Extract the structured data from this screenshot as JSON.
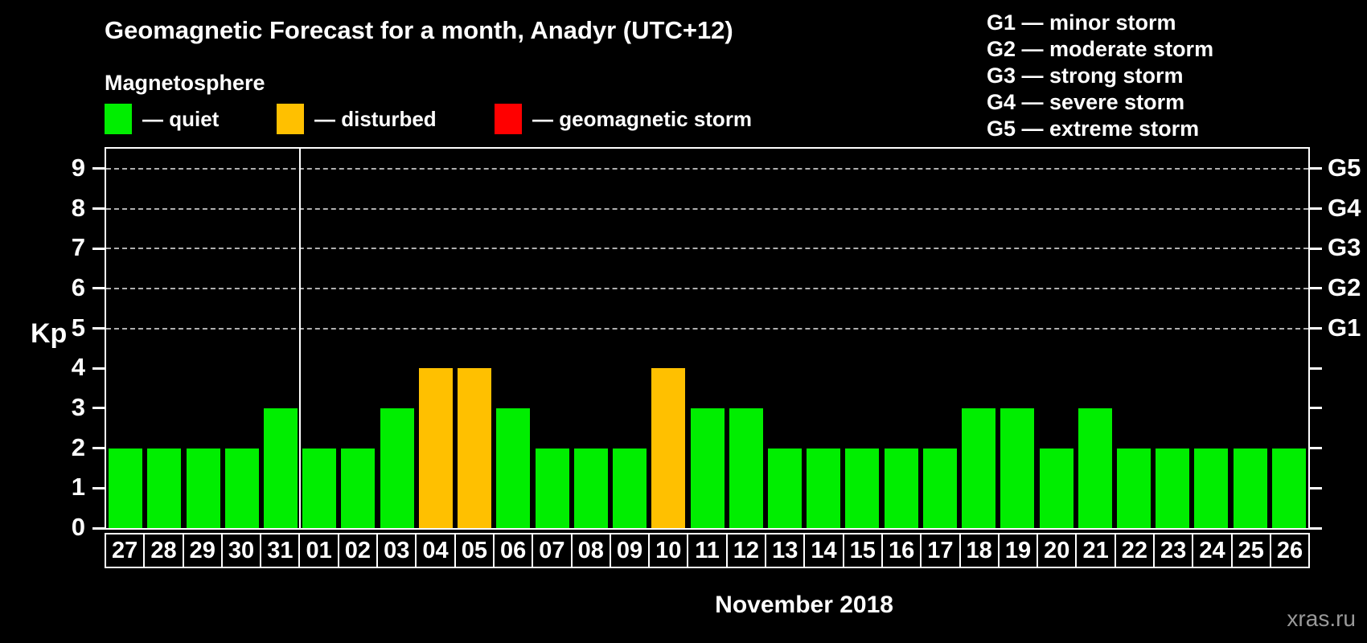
{
  "header": {
    "title": "Geomagnetic Forecast for a month, Anadyr (UTC+12)",
    "subtitle": "Magnetosphere"
  },
  "legend": {
    "items": [
      {
        "id": "quiet",
        "label": "— quiet",
        "color": "#00EE00"
      },
      {
        "id": "disturbed",
        "label": "— disturbed",
        "color": "#FFC000"
      },
      {
        "id": "storm",
        "label": "— geomagnetic storm",
        "color": "#FF0000"
      }
    ]
  },
  "g_legend": {
    "items": [
      "G1 — minor storm",
      "G2 — moderate storm",
      "G3 — strong storm",
      "G4 — severe storm",
      "G5 — extreme storm"
    ]
  },
  "axes": {
    "y_label": "Kp",
    "y_ticks": [
      0,
      1,
      2,
      3,
      4,
      5,
      6,
      7,
      8,
      9
    ],
    "gridline_kp": [
      5,
      6,
      7,
      8,
      9
    ],
    "right_labels": [
      {
        "kp": 5,
        "label": "G1"
      },
      {
        "kp": 6,
        "label": "G2"
      },
      {
        "kp": 7,
        "label": "G3"
      },
      {
        "kp": 8,
        "label": "G4"
      },
      {
        "kp": 9,
        "label": "G5"
      }
    ],
    "x_label": "November 2018"
  },
  "chart_data": {
    "type": "bar",
    "title": "Geomagnetic Forecast for a month, Anadyr (UTC+12)",
    "xlabel": "November 2018",
    "ylabel": "Kp",
    "ylim": [
      0,
      9.5
    ],
    "categories": [
      "27",
      "28",
      "29",
      "30",
      "31",
      "01",
      "02",
      "03",
      "04",
      "05",
      "06",
      "07",
      "08",
      "09",
      "10",
      "11",
      "12",
      "13",
      "14",
      "15",
      "16",
      "17",
      "18",
      "19",
      "20",
      "21",
      "22",
      "23",
      "24",
      "25",
      "26"
    ],
    "values": [
      2,
      2,
      2,
      2,
      3,
      2,
      2,
      3,
      4,
      4,
      3,
      2,
      2,
      2,
      4,
      3,
      3,
      2,
      2,
      2,
      2,
      2,
      3,
      3,
      2,
      3,
      2,
      2,
      2,
      2,
      2
    ],
    "separator_after_index": 4,
    "thresholds": {
      "quiet_max": 3,
      "disturbed_max": 5
    },
    "legend_position": "top",
    "grid": "dashed horizontal at Kp 5-9"
  },
  "footer": {
    "watermark": "xras.ru"
  },
  "colors": {
    "background": "#000000",
    "quiet": "#00EE00",
    "disturbed": "#FFC000",
    "storm": "#FF0000",
    "axis": "#FFFFFF",
    "grid": "#B0B0B0",
    "watermark": "#999999"
  }
}
